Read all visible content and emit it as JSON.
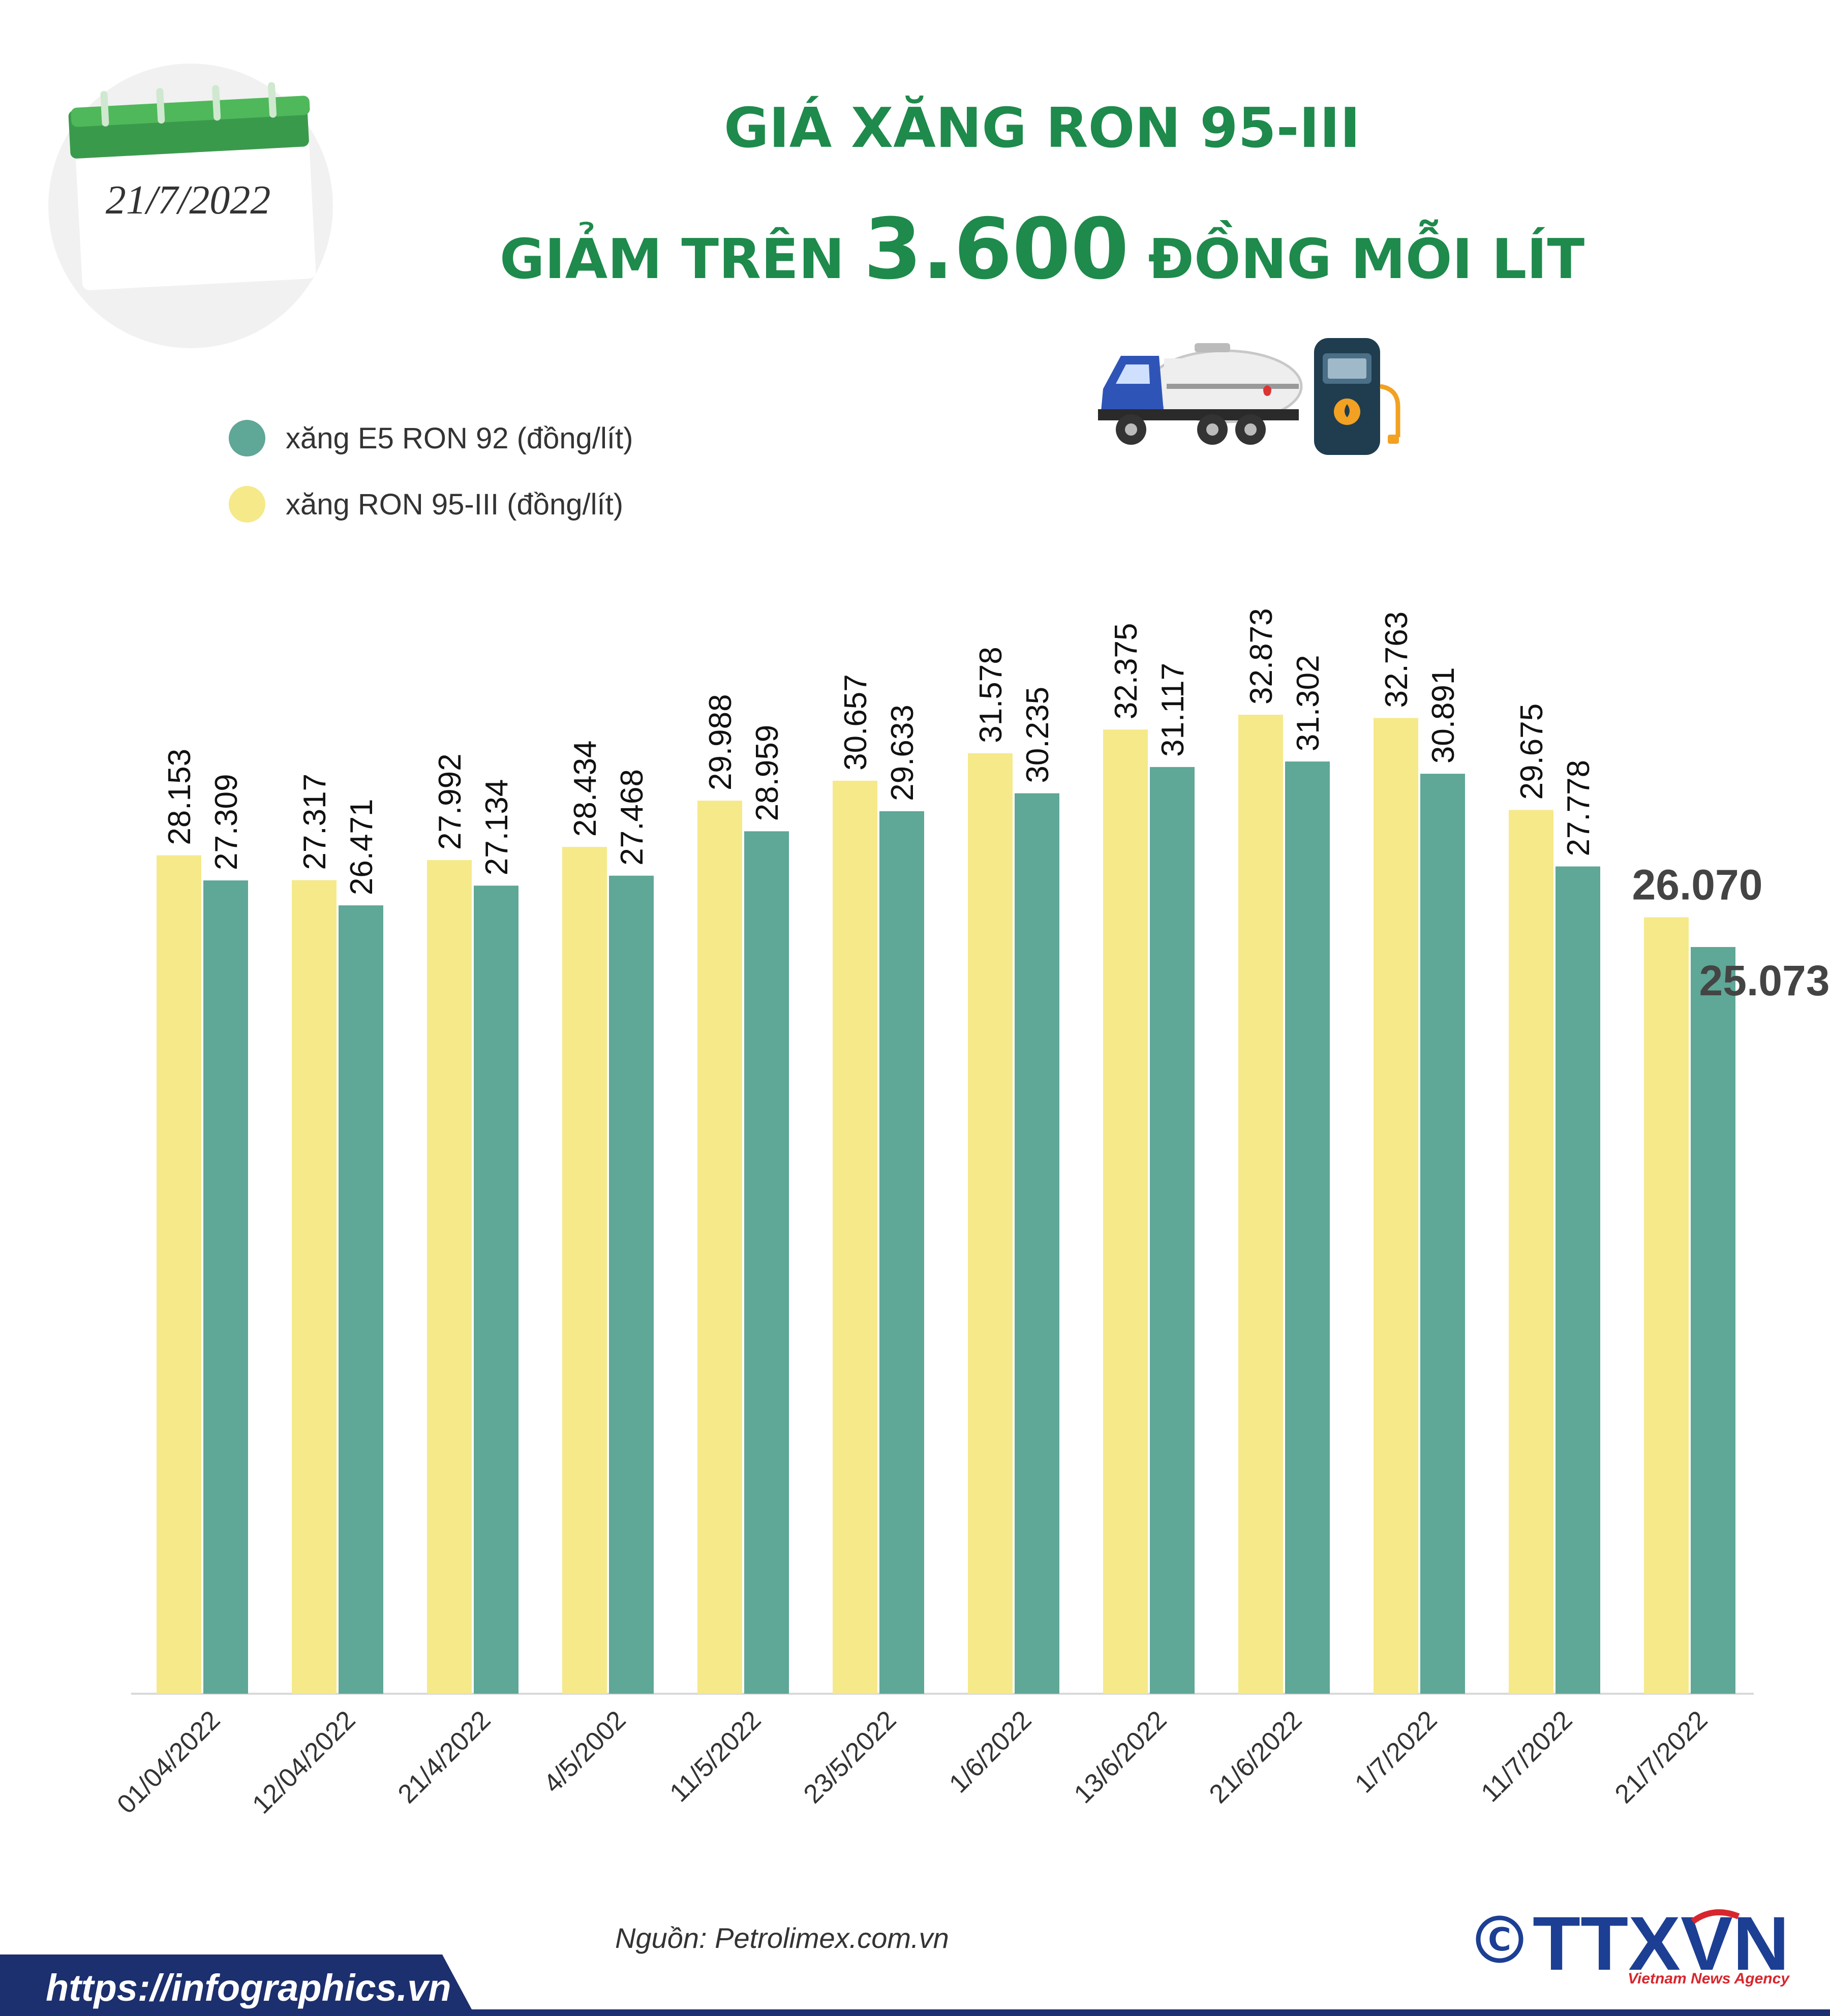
{
  "calendar": {
    "date": "21/7/2022"
  },
  "header": {
    "title_line1": "GIÁ XĂNG RON 95-III",
    "title_prefix": "GIẢM TRÊN ",
    "title_number": "3.600",
    "title_suffix": " ĐỒNG MỖI LÍT"
  },
  "colors": {
    "ron95": "#f5e98a",
    "e5": "#5fa797",
    "title": "#1e8a4c",
    "footer": "#1c2f6e"
  },
  "chart_data": {
    "type": "bar",
    "categories": [
      "01/04/2022",
      "12/04/2022",
      "21/4/2022",
      "4/5/2002",
      "11/5/2022",
      "23/5/2022",
      "1/6/2022",
      "13/6/2022",
      "21/6/2022",
      "1/7/2022",
      "11/7/2022",
      "21/7/2022"
    ],
    "series": [
      {
        "name": "xăng RON 95-III (đồng/lít)",
        "values": [
          28153,
          27317,
          27992,
          28434,
          29988,
          30657,
          31578,
          32375,
          32873,
          32763,
          29675,
          26070
        ],
        "labels": [
          "28.153",
          "27.317",
          "27.992",
          "28.434",
          "29.988",
          "30.657",
          "31.578",
          "32.375",
          "32.873",
          "32.763",
          "29.675",
          "26.070"
        ]
      },
      {
        "name": "xăng E5 RON 92 (đồng/lít)",
        "values": [
          27309,
          26471,
          27134,
          27468,
          28959,
          29633,
          30235,
          31117,
          31302,
          30891,
          27778,
          25073
        ],
        "labels": [
          "27.309",
          "26.471",
          "27.134",
          "27.468",
          "28.959",
          "29.633",
          "30.235",
          "31.117",
          "31.302",
          "30.891",
          "27.778",
          "25.073"
        ]
      }
    ],
    "legend": [
      "xăng E5 RON 92 (đồng/lít)",
      "xăng RON 95-III (đồng/lít)"
    ],
    "ylim": [
      0,
      34000
    ],
    "grid": false,
    "legend_position": "top-left"
  },
  "source": "Nguồn: Petrolimex.com.vn",
  "footer": {
    "url": "https://infographics.vn",
    "agency": "TTXVN",
    "agency_sub": "Vietnam News Agency"
  }
}
